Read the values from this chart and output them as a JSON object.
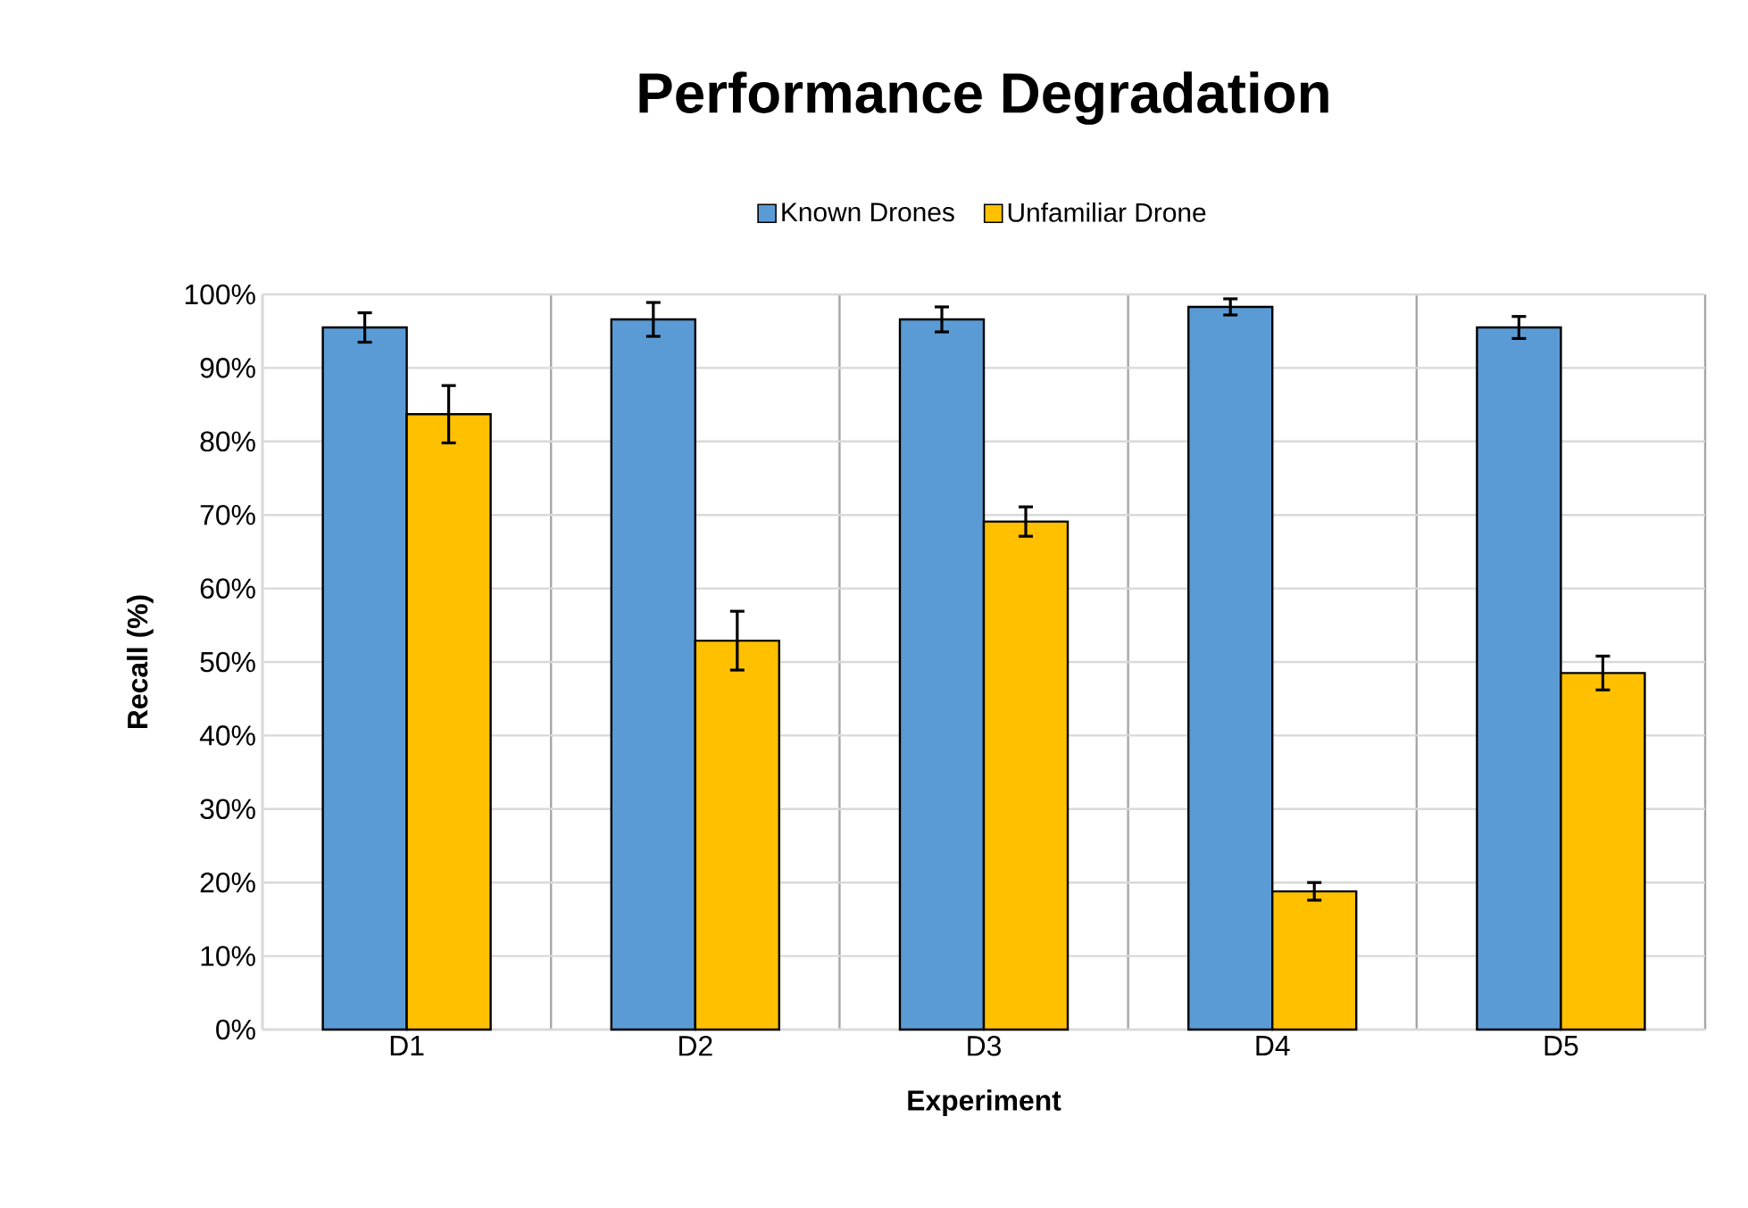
{
  "chart_data": {
    "type": "bar",
    "title": "Performance Degradation",
    "xlabel": "Experiment",
    "ylabel": "Recall (%)",
    "categories": [
      "D1",
      "D2",
      "D3",
      "D4",
      "D5"
    ],
    "series": [
      {
        "name": "Known Drones",
        "color": "#5b9bd5",
        "values": [
          95.5,
          96.6,
          96.6,
          98.3,
          95.5
        ],
        "errors": [
          2,
          2.3,
          1.7,
          1.1,
          1.5
        ]
      },
      {
        "name": "Unfamiliar Drone",
        "color": "#ffc000",
        "values": [
          83.7,
          52.9,
          69.1,
          18.8,
          48.5
        ],
        "errors": [
          3.9,
          4,
          2,
          1.2,
          2.3
        ]
      }
    ],
    "ylim": [
      0,
      100
    ],
    "yticks": [
      {
        "value": 0,
        "label": "0%"
      },
      {
        "value": 10,
        "label": "10%"
      },
      {
        "value": 20,
        "label": "20%"
      },
      {
        "value": 30,
        "label": "30%"
      },
      {
        "value": 40,
        "label": "40%"
      },
      {
        "value": 50,
        "label": "50%"
      },
      {
        "value": 60,
        "label": "60%"
      },
      {
        "value": 70,
        "label": "70%"
      },
      {
        "value": 80,
        "label": "80%"
      },
      {
        "value": 90,
        "label": "90%"
      },
      {
        "value": 100,
        "label": "100%"
      }
    ],
    "grid": true,
    "legend": "top"
  }
}
